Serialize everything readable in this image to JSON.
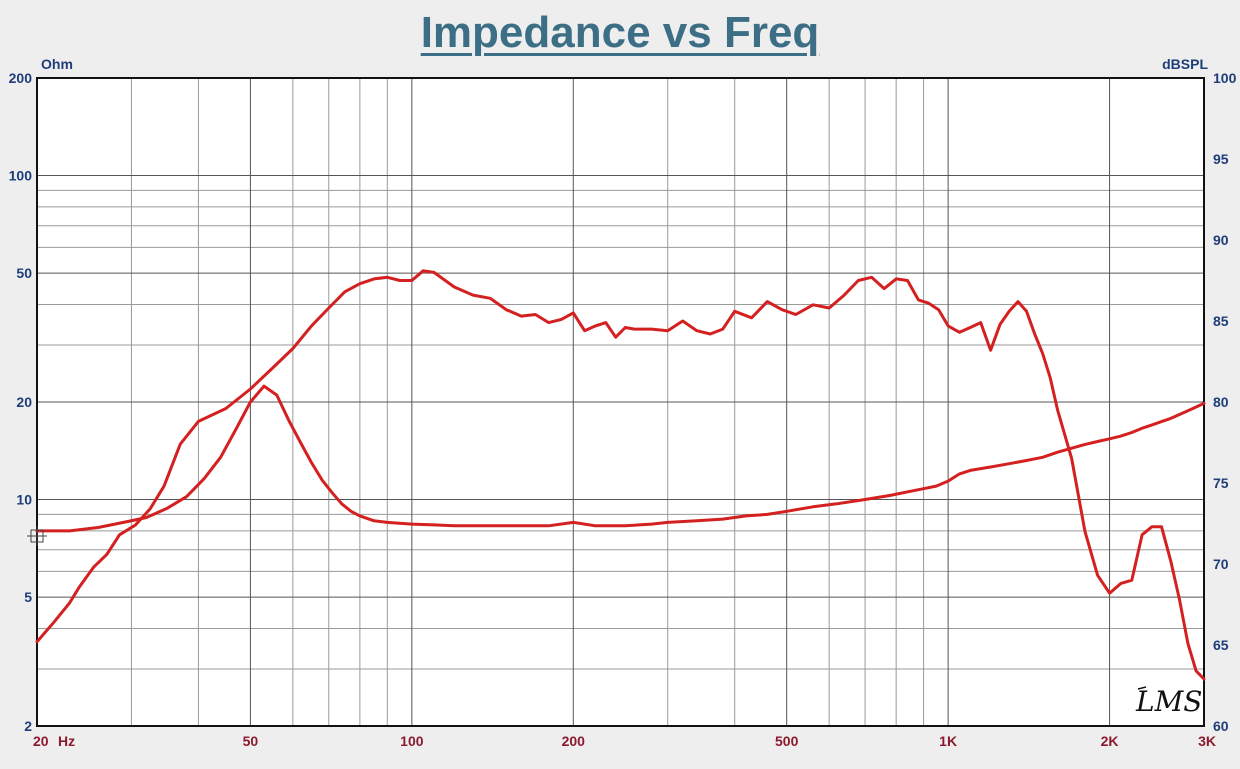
{
  "chart_data": {
    "type": "line",
    "title": "Impedance vs Freq",
    "x_scale": "log",
    "xlim": [
      20,
      3000
    ],
    "x_ticks": [
      {
        "value": 20,
        "label": "20"
      },
      {
        "value": 50,
        "label": "50"
      },
      {
        "value": 100,
        "label": "100"
      },
      {
        "value": 200,
        "label": "200"
      },
      {
        "value": 500,
        "label": "500"
      },
      {
        "value": 1000,
        "label": "1K"
      },
      {
        "value": 2000,
        "label": "2K"
      },
      {
        "value": 3000,
        "label": "3K"
      }
    ],
    "x_unit": "Hz",
    "y_left": {
      "unit": "Ohm",
      "scale": "log",
      "range": [
        2,
        200
      ],
      "ticks": [
        {
          "value": 2,
          "label": "2"
        },
        {
          "value": 5,
          "label": "5"
        },
        {
          "value": 10,
          "label": "10"
        },
        {
          "value": 20,
          "label": "20"
        },
        {
          "value": 50,
          "label": "50"
        },
        {
          "value": 100,
          "label": "100"
        },
        {
          "value": 200,
          "label": "200"
        }
      ]
    },
    "y_right": {
      "unit": "dBSPL",
      "scale": "linear",
      "range": [
        60,
        100
      ],
      "ticks": [
        {
          "value": 60,
          "label": "60"
        },
        {
          "value": 65,
          "label": "65"
        },
        {
          "value": 70,
          "label": "70"
        },
        {
          "value": 75,
          "label": "75"
        },
        {
          "value": 80,
          "label": "80"
        },
        {
          "value": 85,
          "label": "85"
        },
        {
          "value": 90,
          "label": "90"
        },
        {
          "value": 95,
          "label": "95"
        },
        {
          "value": 100,
          "label": "100"
        }
      ]
    },
    "grid": true,
    "series": [
      {
        "axis": "right",
        "color": "#d42020",
        "points": [
          [
            20,
            65.2
          ],
          [
            21.5,
            66.4
          ],
          [
            23,
            67.6
          ],
          [
            24,
            68.6
          ],
          [
            25.5,
            69.8
          ],
          [
            27,
            70.6
          ],
          [
            28.5,
            71.8
          ],
          [
            30.5,
            72.4
          ],
          [
            32.5,
            73.4
          ],
          [
            34.5,
            74.8
          ],
          [
            37,
            77.4
          ],
          [
            40,
            78.8
          ],
          [
            45,
            79.6
          ],
          [
            50,
            80.8
          ],
          [
            55,
            82.1
          ],
          [
            60,
            83.3
          ],
          [
            65,
            84.7
          ],
          [
            70,
            85.8
          ],
          [
            75,
            86.8
          ],
          [
            80,
            87.3
          ],
          [
            85,
            87.6
          ],
          [
            90,
            87.7
          ],
          [
            95,
            87.5
          ],
          [
            100,
            87.5
          ],
          [
            105,
            88.1
          ],
          [
            110,
            88.0
          ],
          [
            120,
            87.1
          ],
          [
            130,
            86.6
          ],
          [
            140,
            86.4
          ],
          [
            150,
            85.7
          ],
          [
            160,
            85.3
          ],
          [
            170,
            85.4
          ],
          [
            180,
            84.9
          ],
          [
            190,
            85.1
          ],
          [
            200,
            85.5
          ],
          [
            210,
            84.4
          ],
          [
            220,
            84.7
          ],
          [
            230,
            84.9
          ],
          [
            240,
            84.0
          ],
          [
            250,
            84.6
          ],
          [
            260,
            84.5
          ],
          [
            280,
            84.5
          ],
          [
            300,
            84.4
          ],
          [
            320,
            85.0
          ],
          [
            340,
            84.4
          ],
          [
            360,
            84.2
          ],
          [
            380,
            84.5
          ],
          [
            400,
            85.6
          ],
          [
            430,
            85.2
          ],
          [
            460,
            86.2
          ],
          [
            490,
            85.7
          ],
          [
            520,
            85.4
          ],
          [
            560,
            86.0
          ],
          [
            600,
            85.8
          ],
          [
            640,
            86.6
          ],
          [
            680,
            87.5
          ],
          [
            720,
            87.7
          ],
          [
            760,
            87.0
          ],
          [
            800,
            87.6
          ],
          [
            840,
            87.5
          ],
          [
            880,
            86.3
          ],
          [
            920,
            86.1
          ],
          [
            960,
            85.7
          ],
          [
            1000,
            84.7
          ],
          [
            1050,
            84.3
          ],
          [
            1100,
            84.6
          ],
          [
            1150,
            84.9
          ],
          [
            1200,
            83.2
          ],
          [
            1250,
            84.8
          ],
          [
            1300,
            85.6
          ],
          [
            1350,
            86.2
          ],
          [
            1400,
            85.6
          ],
          [
            1450,
            84.2
          ],
          [
            1500,
            83.0
          ],
          [
            1550,
            81.5
          ],
          [
            1600,
            79.5
          ],
          [
            1700,
            76.5
          ],
          [
            1800,
            72.0
          ],
          [
            1900,
            69.3
          ],
          [
            2000,
            68.2
          ],
          [
            2100,
            68.8
          ],
          [
            2200,
            69.0
          ],
          [
            2300,
            71.8
          ],
          [
            2400,
            72.3
          ],
          [
            2500,
            72.3
          ],
          [
            2600,
            70.2
          ],
          [
            2700,
            67.8
          ],
          [
            2800,
            65.1
          ],
          [
            2900,
            63.4
          ],
          [
            3000,
            62.9
          ]
        ]
      },
      {
        "axis": "left",
        "color": "#d42020",
        "points": [
          [
            20,
            8.0
          ],
          [
            23,
            8.0
          ],
          [
            26,
            8.2
          ],
          [
            29,
            8.5
          ],
          [
            32,
            8.8
          ],
          [
            35,
            9.4
          ],
          [
            38,
            10.2
          ],
          [
            41,
            11.6
          ],
          [
            44,
            13.5
          ],
          [
            47,
            16.5
          ],
          [
            50,
            20.0
          ],
          [
            53,
            22.4
          ],
          [
            56,
            21.0
          ],
          [
            59,
            17.5
          ],
          [
            62,
            15.0
          ],
          [
            65,
            13.0
          ],
          [
            68,
            11.5
          ],
          [
            71,
            10.5
          ],
          [
            74,
            9.7
          ],
          [
            77,
            9.2
          ],
          [
            80,
            8.9
          ],
          [
            85,
            8.6
          ],
          [
            90,
            8.5
          ],
          [
            100,
            8.4
          ],
          [
            110,
            8.35
          ],
          [
            120,
            8.3
          ],
          [
            140,
            8.3
          ],
          [
            160,
            8.3
          ],
          [
            180,
            8.3
          ],
          [
            200,
            8.5
          ],
          [
            220,
            8.3
          ],
          [
            250,
            8.3
          ],
          [
            280,
            8.4
          ],
          [
            300,
            8.5
          ],
          [
            340,
            8.6
          ],
          [
            380,
            8.7
          ],
          [
            420,
            8.9
          ],
          [
            460,
            9.0
          ],
          [
            500,
            9.2
          ],
          [
            560,
            9.5
          ],
          [
            620,
            9.7
          ],
          [
            700,
            10.0
          ],
          [
            780,
            10.3
          ],
          [
            850,
            10.6
          ],
          [
            900,
            10.8
          ],
          [
            950,
            11.0
          ],
          [
            1000,
            11.4
          ],
          [
            1050,
            12.0
          ],
          [
            1100,
            12.3
          ],
          [
            1200,
            12.6
          ],
          [
            1300,
            12.9
          ],
          [
            1400,
            13.2
          ],
          [
            1500,
            13.5
          ],
          [
            1600,
            14.0
          ],
          [
            1700,
            14.4
          ],
          [
            1800,
            14.8
          ],
          [
            1900,
            15.1
          ],
          [
            2000,
            15.4
          ],
          [
            2100,
            15.7
          ],
          [
            2200,
            16.1
          ],
          [
            2300,
            16.6
          ],
          [
            2400,
            17.0
          ],
          [
            2500,
            17.4
          ],
          [
            2600,
            17.8
          ],
          [
            2700,
            18.3
          ],
          [
            2800,
            18.8
          ],
          [
            2900,
            19.3
          ],
          [
            3000,
            19.8
          ]
        ]
      }
    ],
    "watermark": "LMS"
  }
}
